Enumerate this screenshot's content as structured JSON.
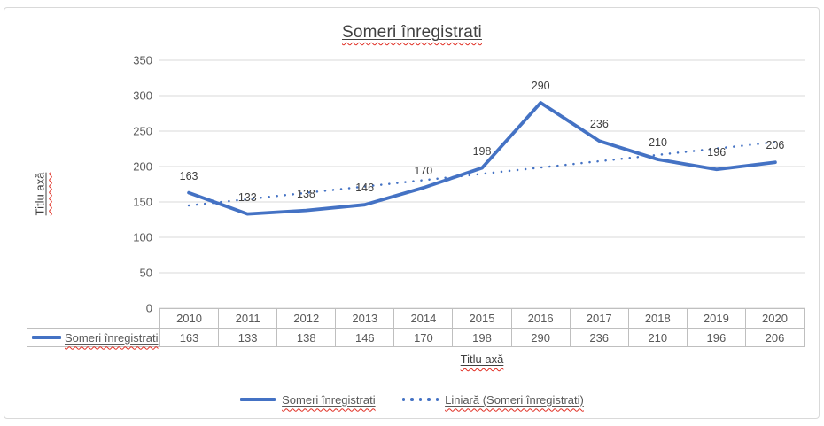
{
  "chart_data": {
    "type": "line",
    "title": "Someri înregistrati",
    "x_axis_title": "Titlu axă",
    "y_axis_title": "Titlu axă",
    "categories": [
      "2010",
      "2011",
      "2012",
      "2013",
      "2014",
      "2015",
      "2016",
      "2017",
      "2018",
      "2019",
      "2020"
    ],
    "series": [
      {
        "name": "Someri înregistrati",
        "style": "solid",
        "values": [
          163,
          133,
          138,
          146,
          170,
          198,
          290,
          236,
          210,
          196,
          206
        ],
        "data_labels": true
      },
      {
        "name": "Liniară (Someri înregistrati)",
        "style": "dotted",
        "kind": "linear-trendline"
      }
    ],
    "ylim": [
      0,
      350
    ],
    "y_ticks": [
      0,
      50,
      100,
      150,
      200,
      250,
      300,
      350
    ],
    "grid": true,
    "legend_position": "bottom",
    "colors": {
      "series_blue": "#4472C4",
      "gridline": "#d9d9d9",
      "table_border": "#bfbfbf",
      "tick_text": "#595959",
      "title_text": "#404040",
      "spellcheck_red": "#e02b20",
      "frame_border": "#d9d9d9"
    }
  },
  "table": {
    "row_label": "Someri înregistrati",
    "years": [
      "2010",
      "2011",
      "2012",
      "2013",
      "2014",
      "2015",
      "2016",
      "2017",
      "2018",
      "2019",
      "2020"
    ],
    "values": [
      "163",
      "133",
      "138",
      "146",
      "170",
      "198",
      "290",
      "236",
      "210",
      "196",
      "206"
    ]
  },
  "legend": {
    "items": [
      {
        "label": "Someri înregistrati",
        "swatch": "solid-line"
      },
      {
        "label": "Liniară (Someri înregistrati)",
        "swatch": "dotted-line"
      }
    ]
  }
}
